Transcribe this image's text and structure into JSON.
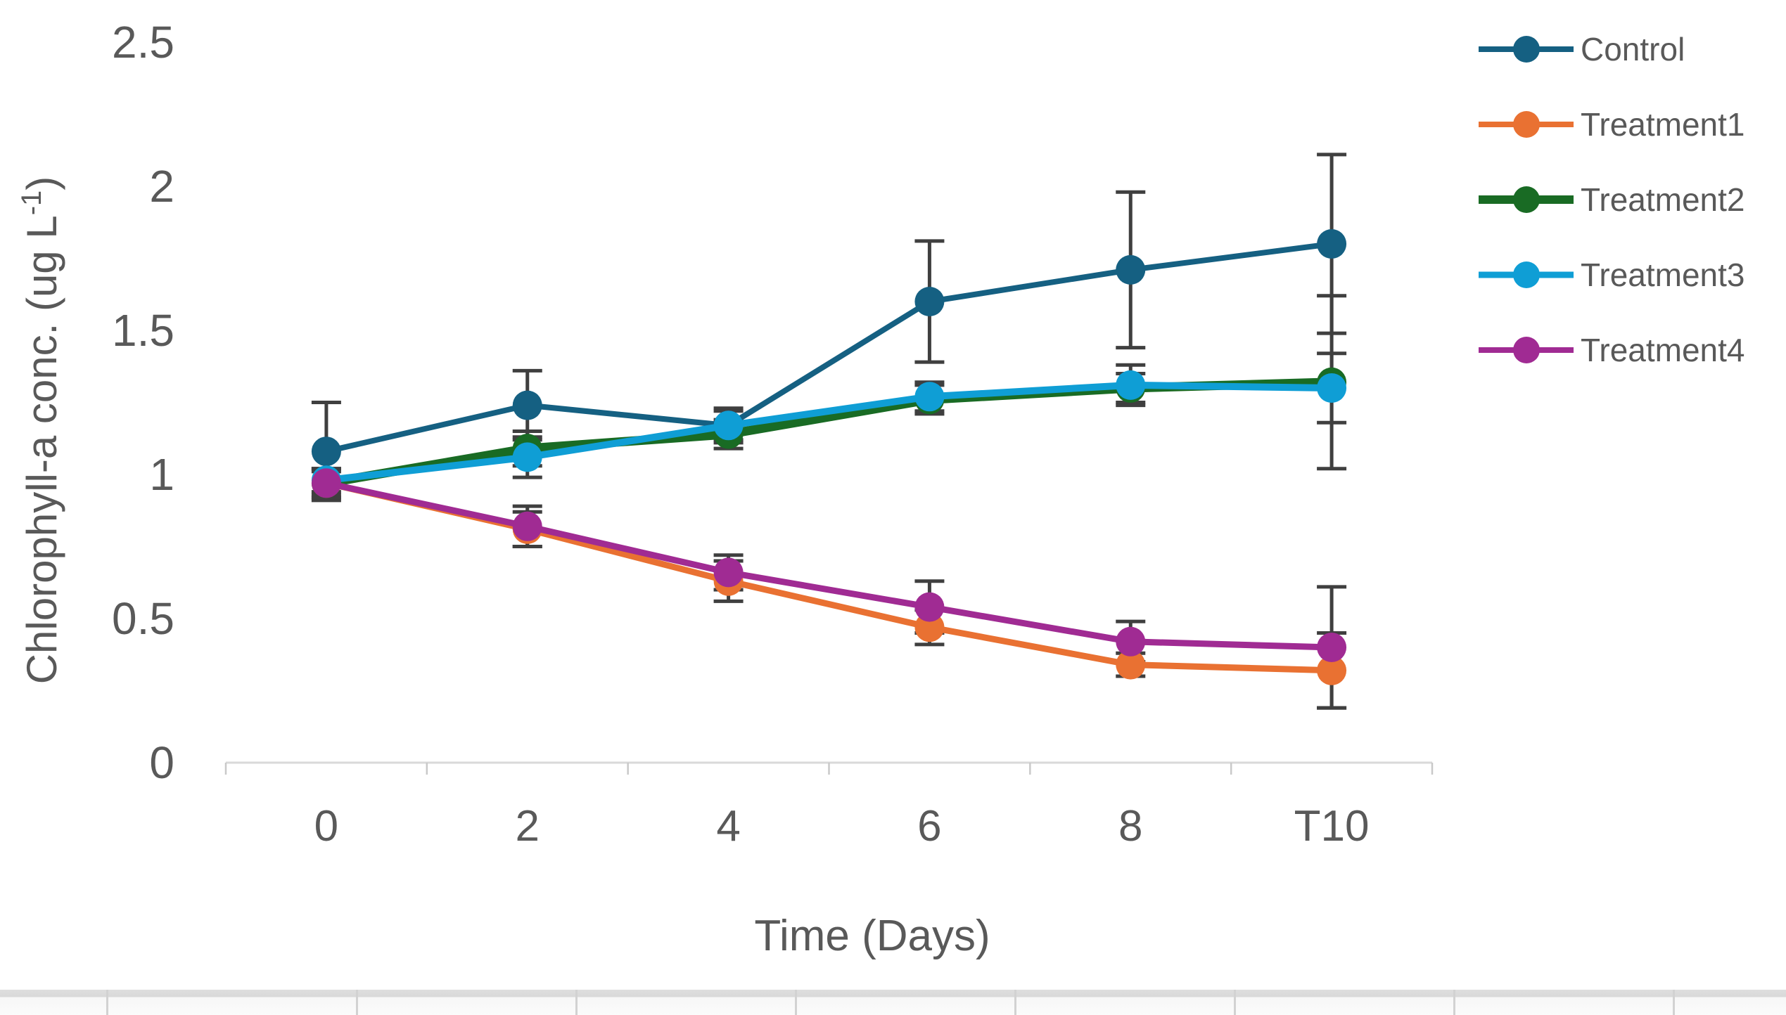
{
  "chart_data": {
    "type": "line",
    "title": "",
    "xlabel": "Time (Days)",
    "ylabel": "Chlorophyll-a conc. (ug L-1)",
    "ylabel_parts": {
      "pre": "Chlorophyll-a conc. (ug L",
      "sup": "-1",
      "post": ")"
    },
    "categories": [
      "0",
      "2",
      "4",
      "6",
      "8",
      "T10"
    ],
    "ylim": [
      0,
      2.5
    ],
    "yticks": [
      0,
      0.5,
      1,
      1.5,
      2,
      2.5
    ],
    "ytick_labels": [
      "0",
      "0.5",
      "1",
      "1.5",
      "2",
      "2.5"
    ],
    "grid": false,
    "legend_position": "right",
    "error_bar_color": "#3F3F3F",
    "axis_line_color": "#D9D9D9",
    "tick_mark_color": "#C9C9C9",
    "text_color": "#595959",
    "series": [
      {
        "name": "Control",
        "color": "#156082",
        "line_width": 8,
        "values": [
          1.08,
          1.24,
          1.17,
          1.6,
          1.71,
          1.8
        ],
        "errors": [
          0.17,
          0.12,
          0.06,
          0.21,
          0.27,
          0.31
        ]
      },
      {
        "name": "Treatment1",
        "color": "#E97132",
        "line_width": 9,
        "values": [
          0.97,
          0.81,
          0.63,
          0.47,
          0.34,
          0.32
        ],
        "errors": [
          0.05,
          0.06,
          0.07,
          0.06,
          0.04,
          0.13
        ]
      },
      {
        "name": "Treatment2",
        "color": "#196B24",
        "line_width": 13,
        "values": [
          0.97,
          1.09,
          1.14,
          1.26,
          1.3,
          1.32
        ],
        "errors": [
          0.04,
          0.06,
          0.05,
          0.05,
          0.05,
          0.3
        ]
      },
      {
        "name": "Treatment3",
        "color": "#0F9ED5",
        "line_width": 10,
        "values": [
          0.98,
          1.06,
          1.17,
          1.27,
          1.31,
          1.3
        ],
        "errors": [
          0.04,
          0.07,
          0.05,
          0.05,
          0.07,
          0.12
        ]
      },
      {
        "name": "Treatment4",
        "color": "#A02B93",
        "line_width": 9,
        "values": [
          0.97,
          0.82,
          0.66,
          0.54,
          0.42,
          0.4
        ],
        "errors": [
          0.05,
          0.07,
          0.06,
          0.09,
          0.07,
          0.21
        ]
      }
    ]
  }
}
